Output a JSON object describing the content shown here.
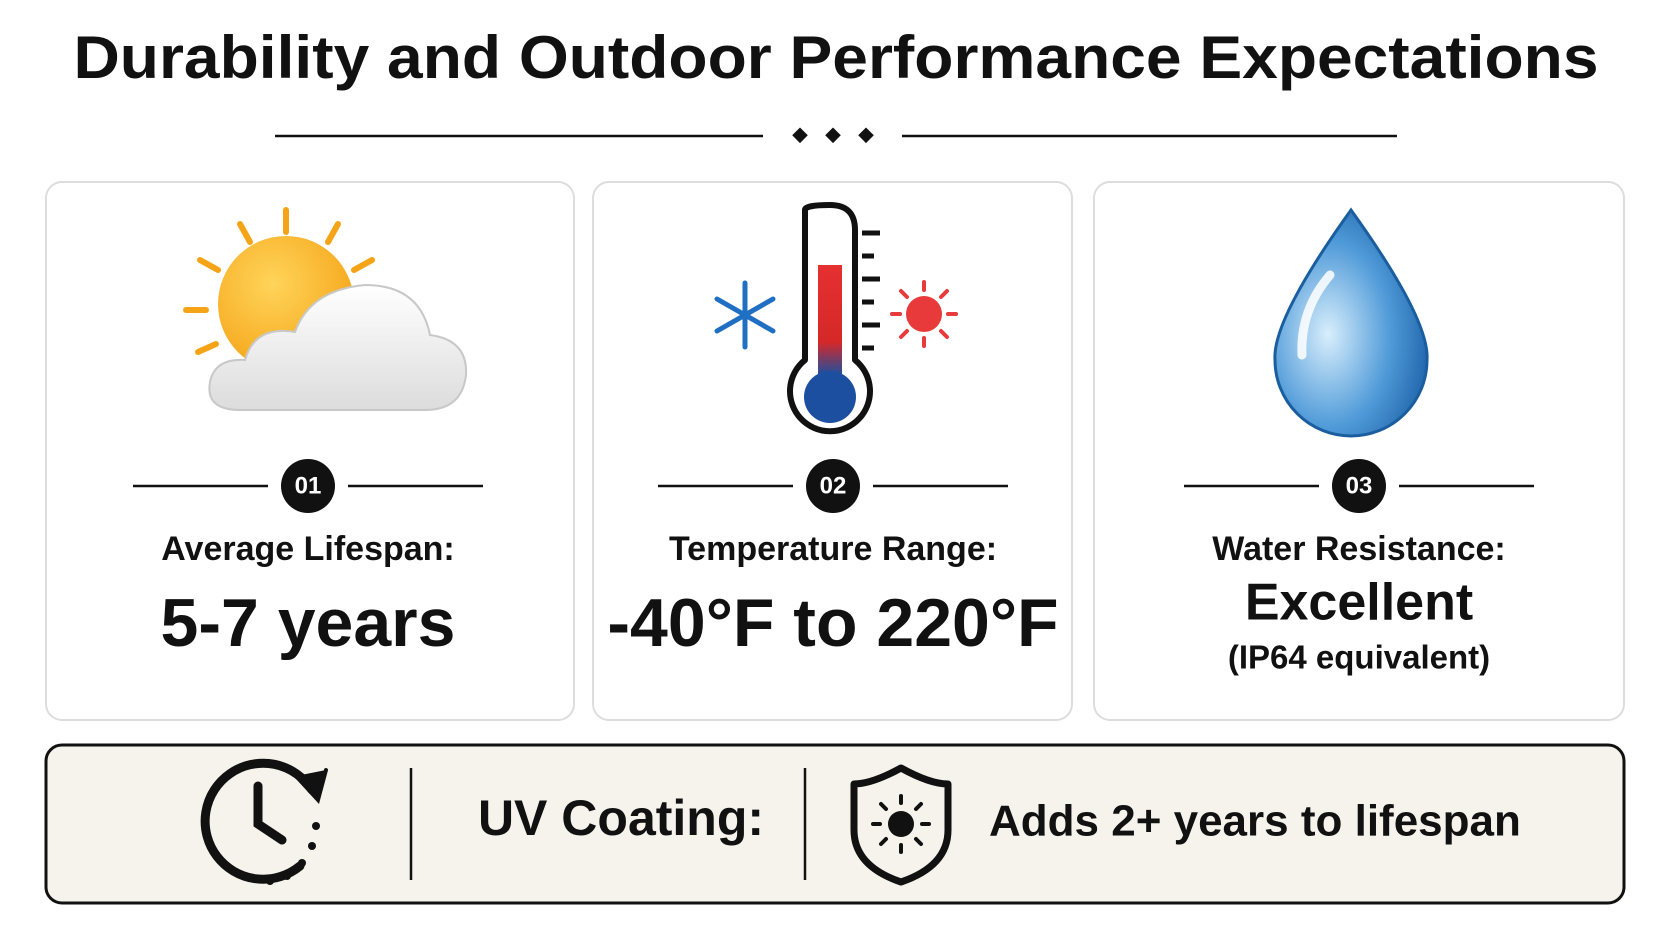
{
  "header": {
    "title": "Durability and Outdoor Performance Expectations"
  },
  "cards": [
    {
      "number": "01",
      "label": "Average Lifespan:",
      "value": "5-7 years"
    },
    {
      "number": "02",
      "label": "Temperature Range:",
      "value": "-40°F to 220°F"
    },
    {
      "number": "03",
      "label": "Water Resistance:",
      "value": "Excellent",
      "note": "(IP64 equivalent)"
    }
  ],
  "footer": {
    "label": "UV Coating:",
    "text": "Adds 2+ years to lifespan"
  }
}
